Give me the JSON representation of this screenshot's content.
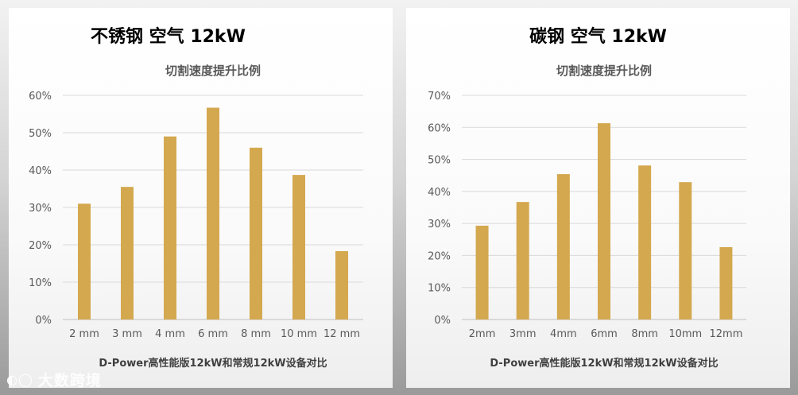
{
  "panels": [
    {
      "title": "不锈钢  空气  12kW",
      "chart_data": {
        "type": "bar",
        "title": "切割速度提升比例",
        "categories": [
          "2 mm",
          "3 mm",
          "4 mm",
          "6 mm",
          "8 mm",
          "10 mm",
          "12 mm"
        ],
        "values": [
          0.31,
          0.355,
          0.49,
          0.567,
          0.46,
          0.387,
          0.183
        ],
        "ylim": [
          0,
          0.6
        ],
        "yticks": [
          "0%",
          "10%",
          "20%",
          "30%",
          "40%",
          "50%",
          "60%"
        ],
        "footnote": "D-Power高性能版12kW和常规12kW设备对比",
        "grid": true,
        "bar_color": "#D4A84F"
      }
    },
    {
      "title": "碳钢  空气 12kW",
      "chart_data": {
        "type": "bar",
        "title": "切割速度提升比例",
        "categories": [
          "2mm",
          "3mm",
          "4mm",
          "6mm",
          "8mm",
          "10mm",
          "12mm"
        ],
        "values": [
          0.293,
          0.367,
          0.454,
          0.613,
          0.481,
          0.429,
          0.226
        ],
        "ylim": [
          0,
          0.7
        ],
        "yticks": [
          "0%",
          "10%",
          "20%",
          "30%",
          "40%",
          "50%",
          "60%",
          "70%"
        ],
        "footnote": "D-Power高性能版12kW和常规12kW设备对比",
        "grid": true,
        "bar_color": "#D4A84F"
      }
    }
  ],
  "watermark": {
    "text": "大数跨境",
    "icon": "logo-icon"
  }
}
